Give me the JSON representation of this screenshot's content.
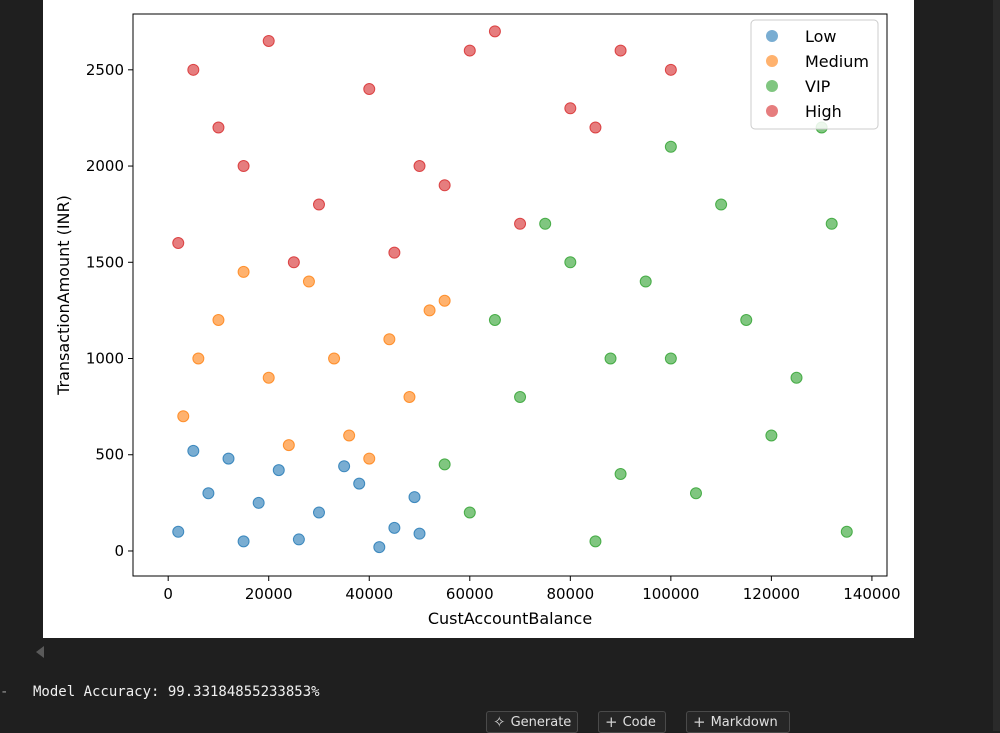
{
  "output": {
    "bullet": "-",
    "text": "Model Accuracy: 99.33184855233853%"
  },
  "toolbar": {
    "generate_label": "Generate",
    "code_label": "Code",
    "markdown_label": "Markdown",
    "generate_icon": "sparkle-icon",
    "code_icon": "plus-icon",
    "markdown_icon": "plus-icon"
  },
  "chart_data": {
    "type": "scatter",
    "title": "",
    "xlabel": "CustAccountBalance",
    "ylabel": "TransactionAmount (INR)",
    "xlim": [
      -7000,
      143000
    ],
    "ylim": [
      -130,
      2790
    ],
    "xticks": [
      0,
      20000,
      40000,
      60000,
      80000,
      100000,
      120000,
      140000
    ],
    "yticks": [
      0,
      500,
      1000,
      1500,
      2000,
      2500
    ],
    "legend_position": "top-right",
    "grid": false,
    "series": [
      {
        "name": "Low",
        "color": "#1f77b4",
        "points": [
          [
            2000,
            100
          ],
          [
            8000,
            300
          ],
          [
            15000,
            50
          ],
          [
            22000,
            420
          ],
          [
            30000,
            200
          ],
          [
            38000,
            350
          ],
          [
            45000,
            120
          ],
          [
            49000,
            280
          ],
          [
            5000,
            520
          ],
          [
            12000,
            480
          ],
          [
            26000,
            60
          ],
          [
            35000,
            440
          ],
          [
            42000,
            20
          ],
          [
            18000,
            250
          ],
          [
            50000,
            90
          ]
        ]
      },
      {
        "name": "Medium",
        "color": "#ff7f0e",
        "points": [
          [
            3000,
            700
          ],
          [
            10000,
            1200
          ],
          [
            20000,
            900
          ],
          [
            28000,
            1400
          ],
          [
            36000,
            600
          ],
          [
            44000,
            1100
          ],
          [
            52000,
            1250
          ],
          [
            48000,
            800
          ],
          [
            15000,
            1450
          ],
          [
            33000,
            1000
          ],
          [
            6000,
            1000
          ],
          [
            24000,
            550
          ],
          [
            40000,
            480
          ],
          [
            55000,
            1300
          ]
        ]
      },
      {
        "name": "VIP",
        "color": "#2ca02c",
        "points": [
          [
            60000,
            200
          ],
          [
            70000,
            800
          ],
          [
            80000,
            1500
          ],
          [
            90000,
            400
          ],
          [
            100000,
            1000
          ],
          [
            110000,
            1800
          ],
          [
            120000,
            600
          ],
          [
            130000,
            2200
          ],
          [
            135000,
            100
          ],
          [
            65000,
            1200
          ],
          [
            85000,
            50
          ],
          [
            95000,
            1400
          ],
          [
            105000,
            300
          ],
          [
            115000,
            1200
          ],
          [
            125000,
            900
          ],
          [
            75000,
            1700
          ],
          [
            55000,
            450
          ],
          [
            132000,
            1700
          ],
          [
            100000,
            2100
          ],
          [
            88000,
            1000
          ]
        ]
      },
      {
        "name": "High",
        "color": "#d62728",
        "points": [
          [
            2000,
            1600
          ],
          [
            10000,
            2200
          ],
          [
            20000,
            2650
          ],
          [
            30000,
            1800
          ],
          [
            40000,
            2400
          ],
          [
            50000,
            2000
          ],
          [
            60000,
            2600
          ],
          [
            70000,
            1700
          ],
          [
            80000,
            2300
          ],
          [
            90000,
            2600
          ],
          [
            100000,
            2500
          ],
          [
            65000,
            2700
          ],
          [
            45000,
            1550
          ],
          [
            15000,
            2000
          ],
          [
            5000,
            2500
          ],
          [
            55000,
            1900
          ],
          [
            85000,
            2200
          ],
          [
            25000,
            1500
          ]
        ]
      }
    ]
  }
}
